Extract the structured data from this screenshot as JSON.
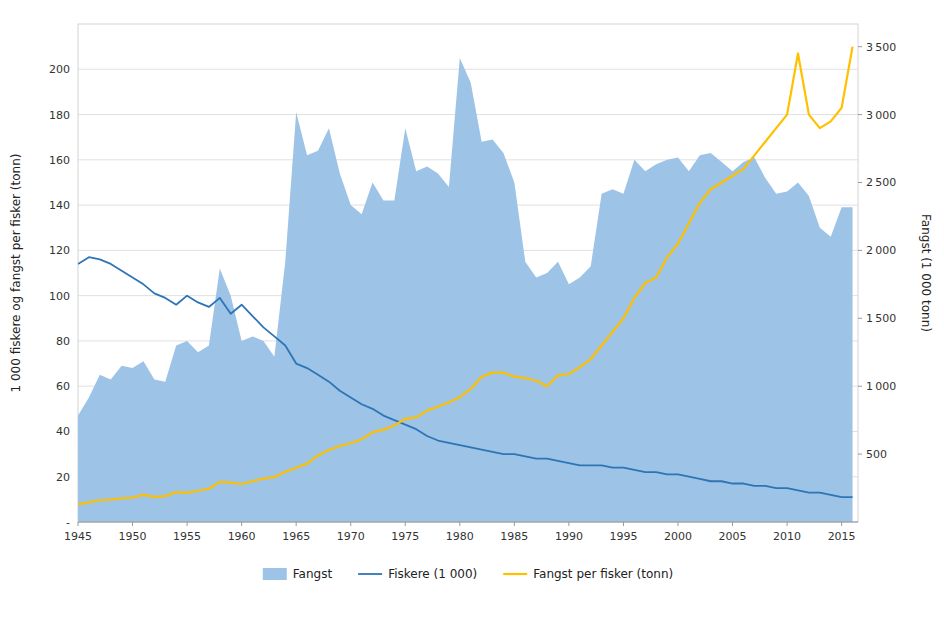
{
  "chart_data": {
    "type": "line",
    "y_label": "1 000 fiskere og fangst per fisker (tonn)",
    "y2_label": "Fangst (1 000 tonn)",
    "x": [
      1945,
      1946,
      1947,
      1948,
      1949,
      1950,
      1951,
      1952,
      1953,
      1954,
      1955,
      1956,
      1957,
      1958,
      1959,
      1960,
      1961,
      1962,
      1963,
      1964,
      1965,
      1966,
      1967,
      1968,
      1969,
      1970,
      1971,
      1972,
      1973,
      1974,
      1975,
      1976,
      1977,
      1978,
      1979,
      1980,
      1981,
      1982,
      1983,
      1984,
      1985,
      1986,
      1987,
      1988,
      1989,
      1990,
      1991,
      1992,
      1993,
      1994,
      1995,
      1996,
      1997,
      1998,
      1999,
      2000,
      2001,
      2002,
      2003,
      2004,
      2005,
      2006,
      2007,
      2008,
      2009,
      2010,
      2011,
      2012,
      2013,
      2014,
      2015,
      2016
    ],
    "xlim": [
      1945,
      2016.5
    ],
    "xticks": [
      1945,
      1950,
      1955,
      1960,
      1965,
      1970,
      1975,
      1980,
      1985,
      1990,
      1995,
      2000,
      2005,
      2010,
      2015
    ],
    "ylim": [
      0,
      220
    ],
    "yticks": [
      {
        "value": 0,
        "label": "-"
      },
      20,
      40,
      60,
      80,
      100,
      120,
      140,
      160,
      180,
      200
    ],
    "y2lim": [
      0,
      3667
    ],
    "y2ticks": [
      500,
      {
        "value": 1000,
        "label": "1 000"
      },
      {
        "value": 1500,
        "label": "1 500"
      },
      {
        "value": 2000,
        "label": "2 000"
      },
      {
        "value": 2500,
        "label": "2 500"
      },
      {
        "value": 3000,
        "label": "3 000"
      },
      {
        "value": 3500,
        "label": "3 500"
      }
    ],
    "grid": true,
    "legend": "bottom",
    "series": [
      {
        "name": "Fangst",
        "type": "area",
        "color": "#9DC3E6",
        "values": [
          47,
          55,
          65,
          63,
          69,
          68,
          71,
          63,
          62,
          78,
          80,
          75,
          78,
          112,
          100,
          80,
          82,
          80,
          73,
          115,
          181,
          162,
          164,
          174,
          154,
          140,
          136,
          150,
          142,
          142,
          174,
          155,
          157,
          154,
          148,
          205,
          194,
          168,
          169,
          163,
          150,
          115,
          108,
          110,
          115,
          105,
          108,
          113,
          145,
          147,
          145,
          160,
          155,
          158,
          160,
          161,
          155,
          162,
          163,
          159,
          155,
          159,
          161,
          152,
          145,
          146,
          150,
          144,
          130,
          126,
          139,
          139
        ]
      },
      {
        "name": "Fiskere (1 000)",
        "type": "line",
        "color": "#2E75B6",
        "values": [
          114,
          117,
          116,
          114,
          111,
          108,
          105,
          101,
          99,
          96,
          100,
          97,
          95,
          99,
          92,
          96,
          91,
          86,
          82,
          78,
          70,
          68,
          65,
          62,
          58,
          55,
          52,
          50,
          47,
          45,
          43,
          41,
          38,
          36,
          35,
          34,
          33,
          32,
          31,
          30,
          30,
          29,
          28,
          28,
          27,
          26,
          25,
          25,
          25,
          24,
          24,
          23,
          22,
          22,
          21,
          21,
          20,
          19,
          18,
          18,
          17,
          17,
          16,
          16,
          15,
          15,
          14,
          13,
          13,
          12,
          11,
          11
        ]
      },
      {
        "name": "Fangst per fisker (tonn)",
        "type": "line",
        "axis": "y2",
        "color": "#FFC000",
        "values": [
          130,
          145,
          160,
          165,
          175,
          180,
          200,
          185,
          190,
          220,
          215,
          230,
          245,
          295,
          290,
          280,
          300,
          320,
          330,
          370,
          400,
          430,
          490,
          530,
          560,
          580,
          610,
          660,
          680,
          710,
          760,
          770,
          820,
          850,
          880,
          920,
          980,
          1070,
          1100,
          1100,
          1070,
          1060,
          1040,
          1000,
          1080,
          1090,
          1140,
          1200,
          1300,
          1400,
          1500,
          1650,
          1760,
          1800,
          1950,
          2050,
          2200,
          2350,
          2450,
          2500,
          2550,
          2600,
          2700,
          2800,
          2900,
          3000,
          3450,
          3000,
          2900,
          2950,
          3050,
          3500
        ]
      }
    ]
  }
}
